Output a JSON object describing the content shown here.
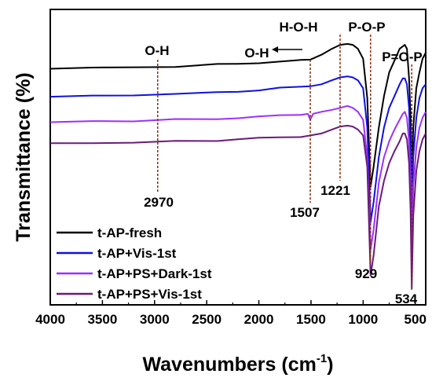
{
  "chart_data": {
    "type": "line",
    "title": "",
    "xlabel": "Wavenumbers (cm",
    "xlabel_sup": "-1",
    "xlabel_close": ")",
    "ylabel": "Transmittance (%)",
    "xlim": [
      4000,
      400
    ],
    "x_reversed": true,
    "xticks": [
      4000,
      3500,
      3000,
      2500,
      2000,
      1500,
      1000,
      500
    ],
    "xtick_labels": [
      "4000",
      "3500",
      "3000",
      "2500",
      "2000",
      "1500",
      "1000",
      "500"
    ],
    "y_ticks_labeled": false,
    "grid": false,
    "legend_position": "bottom-left",
    "series": [
      {
        "name": "t-AP-fresh",
        "color": "#000000",
        "x": [
          4000,
          3600,
          3200,
          2800,
          2400,
          2200,
          2000,
          1800,
          1600,
          1507,
          1400,
          1300,
          1221,
          1150,
          1100,
          1050,
          1000,
          960,
          929,
          900,
          850,
          800,
          750,
          700,
          650,
          600,
          580,
          560,
          545,
          534,
          520,
          490,
          460,
          430,
          400
        ],
        "y": [
          100,
          100.5,
          100.5,
          101,
          102,
          102.5,
          103,
          103.5,
          104,
          104.5,
          107,
          110,
          112,
          112.5,
          112,
          110,
          105,
          85,
          40,
          50,
          70,
          86,
          98,
          104,
          110,
          112,
          110,
          95,
          75,
          45,
          70,
          90,
          98,
          105,
          108
        ]
      },
      {
        "name": "t-AP+Vis-1st",
        "color": "#1010e0",
        "x": [
          4000,
          3600,
          3200,
          2800,
          2400,
          2200,
          2000,
          1800,
          1600,
          1507,
          1400,
          1300,
          1221,
          1150,
          1100,
          1050,
          1000,
          960,
          929,
          900,
          850,
          800,
          750,
          700,
          650,
          620,
          600,
          580,
          560,
          545,
          534,
          520,
          490,
          460,
          430,
          400
        ],
        "y": [
          86,
          86,
          86.5,
          87,
          88,
          88.5,
          89,
          90,
          90.5,
          91,
          92,
          94,
          95.5,
          96,
          95.5,
          94,
          90,
          70,
          22,
          32,
          55,
          70,
          80,
          86,
          92,
          95,
          95,
          92,
          80,
          55,
          25,
          55,
          75,
          85,
          90,
          92
        ]
      },
      {
        "name": "t-AP+PS+Dark-1st",
        "color": "#9b30ff",
        "x": [
          4000,
          3600,
          3200,
          2800,
          2400,
          2200,
          2000,
          1800,
          1600,
          1530,
          1507,
          1480,
          1400,
          1300,
          1221,
          1150,
          1100,
          1050,
          1000,
          960,
          929,
          900,
          850,
          800,
          750,
          700,
          650,
          620,
          600,
          580,
          560,
          545,
          534,
          520,
          490,
          460,
          430,
          400
        ],
        "y": [
          73,
          73,
          73.5,
          74,
          74.5,
          75,
          75.5,
          76,
          76.5,
          77,
          74,
          77,
          78,
          79,
          80,
          81,
          80,
          78,
          74,
          55,
          8,
          18,
          42,
          55,
          63,
          69,
          74,
          77,
          78,
          75,
          63,
          40,
          8,
          40,
          60,
          70,
          75,
          78
        ]
      },
      {
        "name": "t-AP+PS+Vis-1st",
        "color": "#6a1a7a",
        "x": [
          4000,
          3600,
          3200,
          2800,
          2400,
          2200,
          2000,
          1800,
          1600,
          1507,
          1400,
          1300,
          1221,
          1150,
          1100,
          1050,
          1000,
          960,
          929,
          900,
          850,
          800,
          750,
          700,
          650,
          620,
          600,
          580,
          560,
          545,
          534,
          520,
          490,
          460,
          430,
          400
        ],
        "y": [
          62,
          62,
          62.5,
          63,
          63.5,
          64,
          64.5,
          65,
          65.5,
          66,
          67,
          69,
          70.5,
          71,
          70.5,
          69,
          66,
          50,
          -5,
          5,
          30,
          43,
          52,
          58,
          63,
          67,
          67,
          64,
          52,
          28,
          -12,
          25,
          48,
          58,
          64,
          67
        ]
      }
    ],
    "ylim": [
      -20,
      130
    ],
    "annotations": [
      {
        "label": "O-H",
        "x": 2970,
        "bottom_label": "2970"
      },
      {
        "label": "O-H",
        "arrow": true
      },
      {
        "label": "H-O-H",
        "x": 1221,
        "bottom_label": "1221"
      },
      {
        "label": "",
        "x": 1507,
        "bottom_label": "1507"
      },
      {
        "label": "P-O-P",
        "x": 929,
        "bottom_label": "929"
      },
      {
        "label": "P=O-P",
        "x": 534,
        "bottom_label": "534"
      }
    ]
  }
}
